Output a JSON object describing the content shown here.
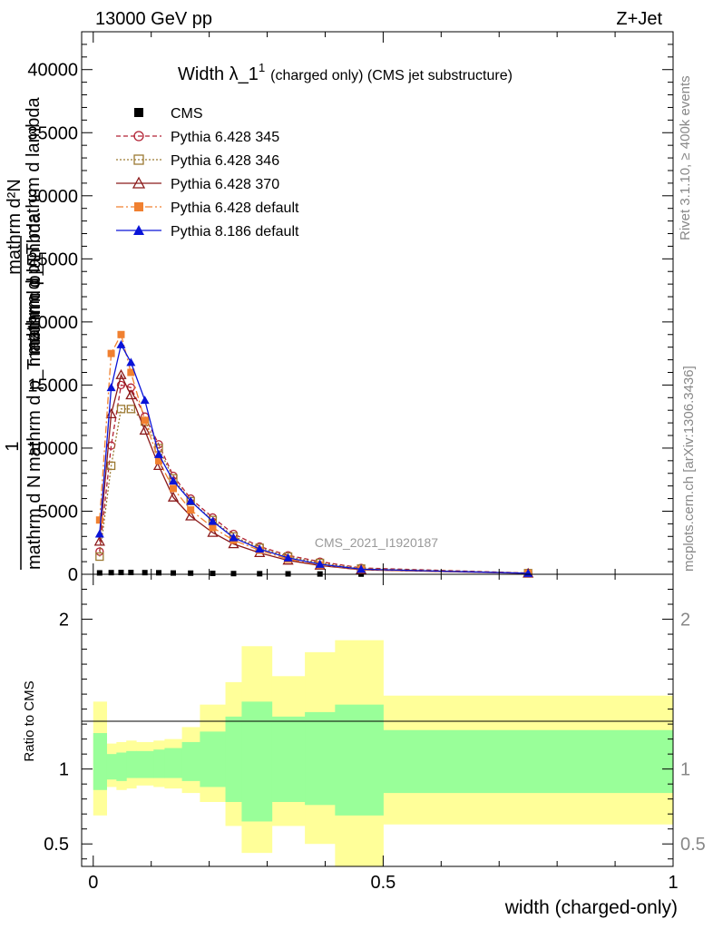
{
  "header": {
    "beam": "13000 GeV pp",
    "process": "Z+Jet",
    "title_main": "Width λ_1",
    "title_sup": "1",
    "title_sub": "(charged only) (CMS jet substructure)",
    "watermark": "CMS_2021_I1920187"
  },
  "side_labels": {
    "rivet": "Rivet 3.1.10, ≥ 400k events",
    "mcplots": "mcplots.cern.ch [arXiv:1306.3436]"
  },
  "chart_data": [
    {
      "type": "line",
      "name": "main-panel",
      "ylabel_numerator": "1",
      "ylabel_den_lines": [
        "mathrm d N",
        "mathrm d p_T mathrm d lambda",
        "mathrm d p_T"
      ],
      "ylabel_right_lines": [
        "mathrm d²N",
        "mathrm d p_T mathrm d lambda"
      ],
      "ylim": [
        0,
        43000
      ],
      "xlim": [
        -0.02,
        1.0
      ],
      "yticks": [
        0,
        5000,
        10000,
        15000,
        20000,
        25000,
        30000,
        35000,
        40000
      ],
      "ytick_labels": [
        "0",
        "5000",
        "10000",
        "15000",
        "20000",
        "25000",
        "30000",
        "35000",
        "40000"
      ],
      "series": [
        {
          "name": "CMS",
          "color": "#000000",
          "marker": "square",
          "dash": "none",
          "x": [
            0.011,
            0.031,
            0.048,
            0.065,
            0.089,
            0.113,
            0.138,
            0.168,
            0.206,
            0.242,
            0.287,
            0.336,
            0.391,
            0.462,
            0.75
          ],
          "y": [
            110,
            130,
            140,
            140,
            130,
            120,
            100,
            90,
            70,
            55,
            45,
            35,
            25,
            15,
            5
          ]
        },
        {
          "name": "Pythia 6.428 345",
          "color": "#b22234",
          "marker": "circle-open",
          "dash": "5,3",
          "x": [
            0.011,
            0.031,
            0.048,
            0.065,
            0.089,
            0.113,
            0.138,
            0.168,
            0.206,
            0.242,
            0.287,
            0.336,
            0.391,
            0.462,
            0.75
          ],
          "y": [
            1800,
            10200,
            15000,
            14800,
            12500,
            10300,
            7800,
            6000,
            4500,
            3200,
            2200,
            1500,
            1000,
            500,
            100
          ]
        },
        {
          "name": "Pythia 6.428 346",
          "color": "#9c7a33",
          "marker": "square-open",
          "dash": "2,2",
          "x": [
            0.011,
            0.031,
            0.048,
            0.065,
            0.089,
            0.113,
            0.138,
            0.168,
            0.206,
            0.242,
            0.287,
            0.336,
            0.391,
            0.462,
            0.75
          ],
          "y": [
            1400,
            8600,
            13100,
            13100,
            12100,
            10000,
            7600,
            5800,
            4300,
            3000,
            2100,
            1400,
            900,
            450,
            90
          ]
        },
        {
          "name": "Pythia 6.428 370",
          "color": "#8b1a1a",
          "marker": "triangle-open",
          "dash": "none",
          "x": [
            0.011,
            0.031,
            0.048,
            0.065,
            0.089,
            0.113,
            0.138,
            0.168,
            0.206,
            0.242,
            0.287,
            0.336,
            0.391,
            0.462,
            0.75
          ],
          "y": [
            2600,
            12700,
            15800,
            14200,
            11400,
            8600,
            6100,
            4600,
            3300,
            2400,
            1700,
            1100,
            700,
            350,
            70
          ]
        },
        {
          "name": "Pythia 6.428 default",
          "color": "#f08030",
          "marker": "square",
          "dash": "8,3,2,3",
          "x": [
            0.011,
            0.031,
            0.048,
            0.065,
            0.089,
            0.113,
            0.138,
            0.168,
            0.206,
            0.242,
            0.287,
            0.336,
            0.391,
            0.462,
            0.75
          ],
          "y": [
            4300,
            17500,
            19000,
            16000,
            12200,
            9000,
            6800,
            5100,
            3700,
            2700,
            1900,
            1200,
            750,
            380,
            80
          ]
        },
        {
          "name": "Pythia 8.186 default",
          "color": "#0a14d8",
          "marker": "triangle",
          "dash": "none",
          "x": [
            0.011,
            0.031,
            0.048,
            0.065,
            0.089,
            0.113,
            0.138,
            0.168,
            0.206,
            0.242,
            0.287,
            0.336,
            0.391,
            0.462,
            0.75
          ],
          "y": [
            3200,
            14800,
            18200,
            16800,
            13800,
            9500,
            7400,
            5800,
            4200,
            2900,
            2000,
            1300,
            800,
            400,
            80
          ]
        }
      ]
    },
    {
      "type": "area",
      "name": "ratio-panel",
      "ylabel": "Ratio to CMS",
      "ylim": [
        0.35,
        2.3
      ],
      "xlim": [
        -0.02,
        1.0
      ],
      "yticks": [
        0.5,
        1,
        2
      ],
      "ytick_labels": [
        "0.5",
        "1",
        "2"
      ],
      "xticks": [
        0,
        0.5,
        1
      ],
      "xtick_labels": [
        "0",
        "0.5",
        "1"
      ],
      "xlabel": "width (charged-only)",
      "bins": [
        0.0,
        0.023,
        0.04,
        0.057,
        0.074,
        0.104,
        0.123,
        0.153,
        0.184,
        0.228,
        0.256,
        0.308,
        0.365,
        0.417,
        0.5,
        1.0
      ],
      "inner_band": {
        "color": "#99ff99",
        "upper": [
          1.24,
          1.1,
          1.11,
          1.12,
          1.12,
          1.13,
          1.14,
          1.18,
          1.25,
          1.35,
          1.45,
          1.35,
          1.38,
          1.43,
          1.26
        ],
        "lower": [
          0.86,
          0.93,
          0.92,
          0.94,
          0.94,
          0.94,
          0.94,
          0.92,
          0.88,
          0.78,
          0.65,
          0.78,
          0.76,
          0.69,
          0.84
        ]
      },
      "outer_band": {
        "color": "#ffff99",
        "upper": [
          1.45,
          1.17,
          1.18,
          1.19,
          1.18,
          1.19,
          1.2,
          1.28,
          1.43,
          1.58,
          1.82,
          1.62,
          1.78,
          1.86,
          1.49
        ],
        "lower": [
          0.69,
          0.88,
          0.86,
          0.87,
          0.89,
          0.88,
          0.87,
          0.84,
          0.78,
          0.62,
          0.44,
          0.62,
          0.5,
          0.35,
          0.63
        ]
      }
    }
  ]
}
